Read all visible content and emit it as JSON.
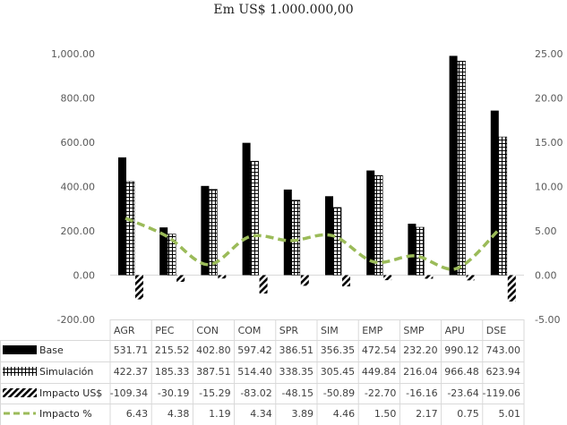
{
  "title": "Em US$ 1.000.000,00",
  "chart_data": {
    "type": "bar",
    "title": "Em US$ 1.000.000,00",
    "categories": [
      "AGR",
      "PEC",
      "CON",
      "COM",
      "SPR",
      "SIM",
      "EMP",
      "SMP",
      "APU",
      "DSE"
    ],
    "series": [
      {
        "name": "Base",
        "type": "bar",
        "axis": "left",
        "values": [
          531.71,
          215.52,
          402.8,
          597.42,
          386.51,
          356.35,
          472.54,
          232.2,
          990.12,
          743.0
        ]
      },
      {
        "name": "Simulación",
        "type": "bar",
        "axis": "left",
        "values": [
          422.37,
          185.33,
          387.51,
          514.4,
          338.35,
          305.45,
          449.84,
          216.04,
          966.48,
          623.94
        ]
      },
      {
        "name": "Impacto US$",
        "type": "bar",
        "axis": "right",
        "values": [
          -109.34,
          -30.19,
          -15.29,
          -83.02,
          -48.15,
          -50.89,
          -22.7,
          -16.16,
          -23.64,
          -119.06
        ]
      },
      {
        "name": "Impacto %",
        "type": "line",
        "axis": "right",
        "values": [
          6.43,
          4.38,
          1.19,
          4.34,
          3.89,
          4.46,
          1.5,
          2.17,
          0.75,
          5.01
        ]
      }
    ],
    "table_values": [
      [
        "531.71",
        "215.52",
        "402.80",
        "597.42",
        "386.51",
        "356.35",
        "472.54",
        "232.20",
        "990.12",
        "743.00"
      ],
      [
        "422.37",
        "185.33",
        "387.51",
        "514.40",
        "338.35",
        "305.45",
        "449.84",
        "216.04",
        "966.48",
        "623.94"
      ],
      [
        "-109.34",
        "-30.19",
        "-15.29",
        "-83.02",
        "-48.15",
        "-50.89",
        "-22.70",
        "-16.16",
        "-23.64",
        "-119.06"
      ],
      [
        "6.43",
        "4.38",
        "1.19",
        "4.34",
        "3.89",
        "4.46",
        "1.50",
        "2.17",
        "0.75",
        "5.01"
      ]
    ],
    "y_left": {
      "ylim": [
        -200,
        1000
      ],
      "ticks": [
        "1,000.00",
        "800.00",
        "600.00",
        "400.00",
        "200.00",
        "0.00",
        "-200.00"
      ],
      "tick_values": [
        1000,
        800,
        600,
        400,
        200,
        0,
        -200
      ]
    },
    "y_right": {
      "ylim": [
        -5,
        25
      ],
      "ticks": [
        "25.00",
        "20.00",
        "15.00",
        "10.00",
        "5.00",
        "0.00",
        "-5.00"
      ],
      "tick_values": [
        25,
        20,
        15,
        10,
        5,
        0,
        -5
      ]
    },
    "grid": false,
    "legend": "data-table",
    "colors": {
      "Base": "#000000",
      "Simulación": "#000000",
      "Impacto US$": "#000000",
      "Impacto %": "#9BBB59"
    }
  }
}
